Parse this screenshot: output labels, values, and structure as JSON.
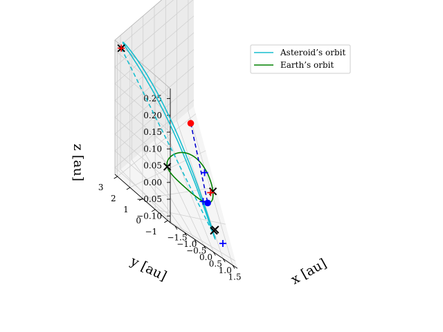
{
  "chart_data": {
    "type": "line",
    "projection": "3d",
    "xlabel": "x [au]",
    "ylabel": "y [au]",
    "zlabel": "z [au]",
    "xlim": [
      -1.75,
      1.75
    ],
    "ylim": [
      -1.2,
      3.2
    ],
    "zlim": [
      -0.12,
      0.28
    ],
    "x_ticks": [
      "−1.5",
      "−1.0",
      "−0.5",
      "0.0",
      "0.5",
      "1.0",
      "1.5"
    ],
    "y_ticks": [
      "−1",
      "0",
      "1",
      "2",
      "3"
    ],
    "z_ticks": [
      "−0.10",
      "−0.05",
      "0.00",
      "0.05",
      "0.10",
      "0.15",
      "0.20",
      "0.25"
    ],
    "grid": true,
    "legend_position": "upper-right",
    "series": [
      {
        "name": "Asteroid’s orbit",
        "color": "#17becf",
        "type": "ellipse",
        "center": [
          -0.38,
          1.05,
          0.085
        ],
        "axis_a": [
          1.12,
          -1.95,
          -0.18
        ],
        "axis_b": [
          -0.42,
          -0.44,
          0.065
        ]
      },
      {
        "name": "Earth’s orbit",
        "color": "#008000",
        "type": "circle",
        "center": [
          0,
          0,
          0
        ],
        "radius": 1.0
      }
    ],
    "dashed_lines": [
      {
        "color": "#17becf",
        "from": [
          -1.55,
          3.05,
          0.25
        ],
        "to": [
          0.75,
          -1.0,
          -0.09
        ]
      },
      {
        "color": "#0000cd",
        "from": [
          0.32,
          0.55,
          0.12
        ],
        "to": [
          0.35,
          -0.94,
          0
        ]
      }
    ],
    "markers": [
      {
        "symbol": "x",
        "color": "#000000",
        "point": [
          -1.55,
          3.05,
          0.25
        ]
      },
      {
        "symbol": "+",
        "color": "#ff0000",
        "point": [
          -1.55,
          3.05,
          0.25
        ]
      },
      {
        "symbol": "x",
        "color": "#000000",
        "point": [
          -0.94,
          0.35,
          0
        ]
      },
      {
        "symbol": "x",
        "color": "#000000",
        "point": [
          0.94,
          -0.35,
          0
        ]
      },
      {
        "symbol": "x",
        "color": "#000000",
        "point": [
          0.69,
          -0.9,
          -0.075
        ]
      },
      {
        "symbol": "x",
        "color": "#000000",
        "point": [
          0.8,
          -0.82,
          -0.075
        ]
      },
      {
        "symbol": "+",
        "color": "#ff0000",
        "point": [
          0.78,
          -0.43,
          0
        ]
      },
      {
        "symbol": "+",
        "color": "#0000ff",
        "point": [
          0.84,
          0.25,
          0
        ]
      },
      {
        "symbol": "+",
        "color": "#0000ff",
        "point": [
          0.08,
          -1.0,
          0
        ]
      },
      {
        "symbol": "+",
        "color": "#0000ff",
        "point": [
          1.1,
          -1.0,
          -0.09
        ]
      },
      {
        "symbol": "dot",
        "color": "#ff0000",
        "point": [
          0.32,
          0.55,
          0.12
        ]
      },
      {
        "symbol": "dot",
        "color": "#0000ff",
        "point": [
          0.35,
          -0.94,
          0
        ]
      }
    ]
  }
}
